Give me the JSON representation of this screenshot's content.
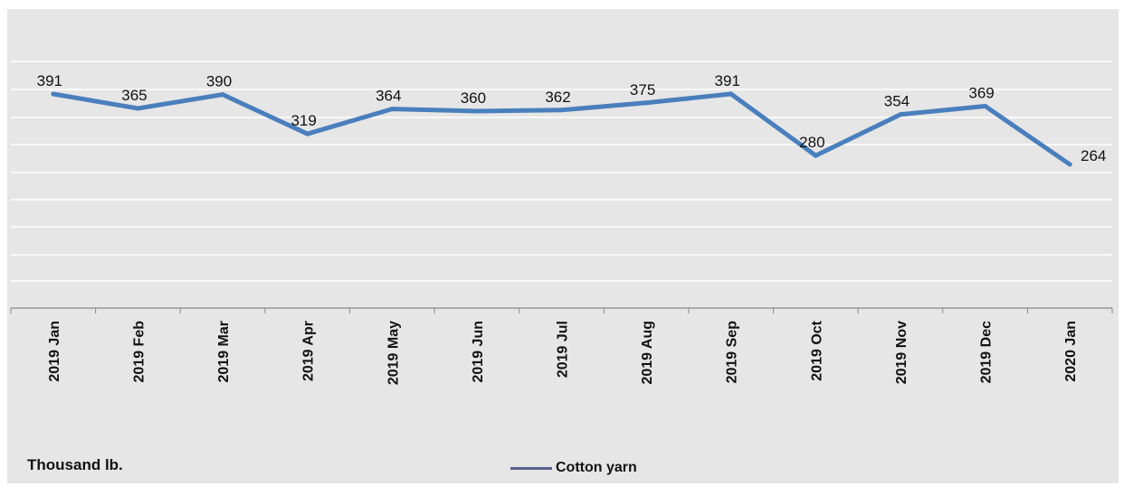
{
  "chart_data": {
    "type": "line",
    "title": "",
    "xlabel": "",
    "ylabel": "Thousand lb.",
    "categories": [
      "2019 Jan",
      "2019 Feb",
      "2019 Mar",
      "2019 Apr",
      "2019 May",
      "2019 Jun",
      "2019 Jul",
      "2019 Aug",
      "2019 Sep",
      "2019 Oct",
      "2019 Nov",
      "2019 Dec",
      "2020 Jan"
    ],
    "series": [
      {
        "name": "Cotton yarn",
        "color": "#4a7fbd",
        "values": [
          391,
          365,
          390,
          319,
          364,
          360,
          362,
          375,
          391,
          280,
          354,
          369,
          264
        ]
      }
    ],
    "legend": "bottom-center",
    "grid": true,
    "data_labels": true
  },
  "colors": {
    "plot_background": "#e6e6e6",
    "gridline": "#ffffff",
    "series_line": "#4a7fbd",
    "legend_swatch": "#5a5f8c"
  }
}
